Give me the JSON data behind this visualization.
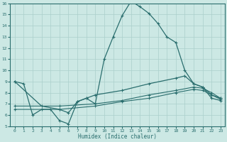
{
  "xlabel": "Humidex (Indice chaleur)",
  "xlim": [
    -0.5,
    23.5
  ],
  "ylim": [
    5,
    16
  ],
  "yticks": [
    5,
    6,
    7,
    8,
    9,
    10,
    11,
    12,
    13,
    14,
    15,
    16
  ],
  "xticks": [
    0,
    1,
    2,
    3,
    4,
    5,
    6,
    7,
    8,
    9,
    10,
    11,
    12,
    13,
    14,
    15,
    16,
    17,
    18,
    19,
    20,
    21,
    22,
    23
  ],
  "background_color": "#cce8e4",
  "grid_color": "#aacfcb",
  "line_color": "#2a6e6e",
  "line1_x": [
    0,
    1,
    2,
    3,
    4,
    5,
    6,
    7,
    8,
    9,
    10,
    11,
    12,
    13,
    14,
    15,
    16,
    17,
    18,
    19,
    20,
    21,
    22,
    23
  ],
  "line1_y": [
    9.0,
    8.8,
    6.0,
    6.5,
    6.5,
    5.5,
    5.2,
    7.2,
    7.5,
    7.0,
    11.0,
    13.0,
    14.9,
    16.2,
    15.7,
    15.1,
    14.2,
    13.0,
    12.5,
    10.0,
    8.8,
    8.5,
    7.5,
    7.3
  ],
  "line2_x": [
    0,
    3,
    5,
    6,
    7,
    8,
    9,
    12,
    15,
    18,
    19,
    20,
    21,
    22,
    23
  ],
  "line2_y": [
    9.0,
    6.8,
    6.5,
    6.2,
    7.2,
    7.5,
    7.8,
    8.2,
    8.8,
    9.3,
    9.5,
    8.8,
    8.5,
    7.8,
    7.5
  ],
  "line3_x": [
    0,
    5,
    9,
    12,
    15,
    18,
    20,
    21,
    22,
    23
  ],
  "line3_y": [
    6.5,
    6.5,
    6.8,
    7.2,
    7.5,
    8.0,
    8.3,
    8.2,
    7.8,
    7.4
  ],
  "line4_x": [
    0,
    5,
    9,
    12,
    15,
    18,
    20,
    21,
    22,
    23
  ],
  "line4_y": [
    6.8,
    6.8,
    7.0,
    7.3,
    7.8,
    8.2,
    8.5,
    8.4,
    8.0,
    7.5
  ]
}
